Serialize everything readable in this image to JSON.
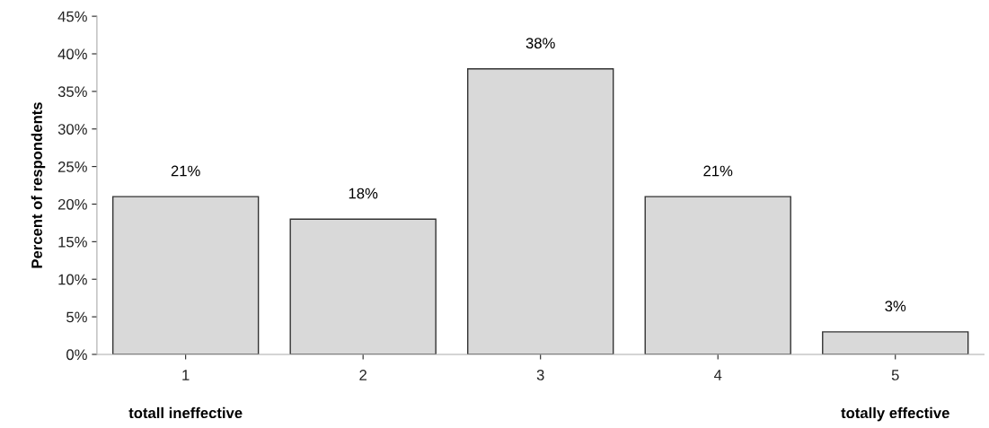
{
  "chart_data": {
    "type": "bar",
    "ylabel": "Percent of respondents",
    "categories": [
      "1",
      "2",
      "3",
      "4",
      "5"
    ],
    "values": [
      21,
      18,
      38,
      21,
      3
    ],
    "color": "#d9d9d9",
    "ylim": [
      0,
      45
    ],
    "yticks": [
      {
        "value": 0,
        "label": "0%"
      },
      {
        "value": 5,
        "label": "5%"
      },
      {
        "value": 10,
        "label": "10%"
      },
      {
        "value": 15,
        "label": "15%"
      },
      {
        "value": 20,
        "label": "20%"
      },
      {
        "value": 25,
        "label": "25%"
      },
      {
        "value": 30,
        "label": "30%"
      },
      {
        "value": 35,
        "label": "35%"
      },
      {
        "value": 40,
        "label": "40%"
      },
      {
        "value": 45,
        "label": "45%"
      }
    ],
    "value_labels": [
      "21%",
      "18%",
      "38%",
      "21%",
      "3%"
    ],
    "annotations": [
      "totall ineffective",
      "totally effective"
    ],
    "grid": false
  }
}
